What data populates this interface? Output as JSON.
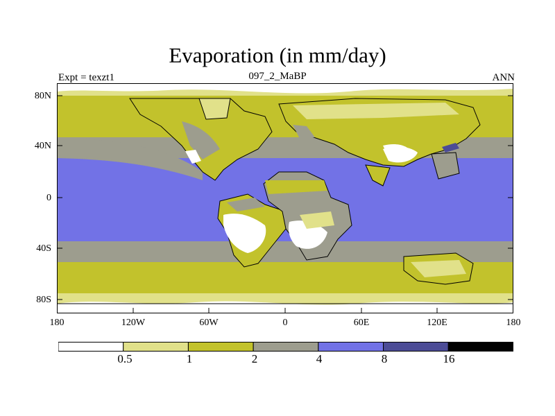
{
  "header": {
    "title": "Evaporation (in mm/day)",
    "experiment": "Expt = texzt1",
    "run": "097_2_MaBP",
    "period": "ANN"
  },
  "map": {
    "lat_labels": [
      "80N",
      "40N",
      "0",
      "40S",
      "80S"
    ],
    "lon_labels": [
      "180",
      "120W",
      "60W",
      "0",
      "60E",
      "120E",
      "180"
    ],
    "colors": {
      "below_0_5": "#ffffff",
      "c0_5_1": "#e1e18a",
      "c1_2": "#c2c22c",
      "c2_4": "#9d9d8e",
      "c4_8": "#7272e6",
      "c8_16": "#4c4c96",
      "above_16": "#000000",
      "outline": "#000000"
    }
  },
  "colorbar": {
    "labels": [
      "0.5",
      "1",
      "2",
      "4",
      "8",
      "16"
    ],
    "colors": [
      "#ffffff",
      "#e1e18a",
      "#c2c22c",
      "#9d9d8e",
      "#7272e6",
      "#4c4c96",
      "#000000"
    ]
  }
}
